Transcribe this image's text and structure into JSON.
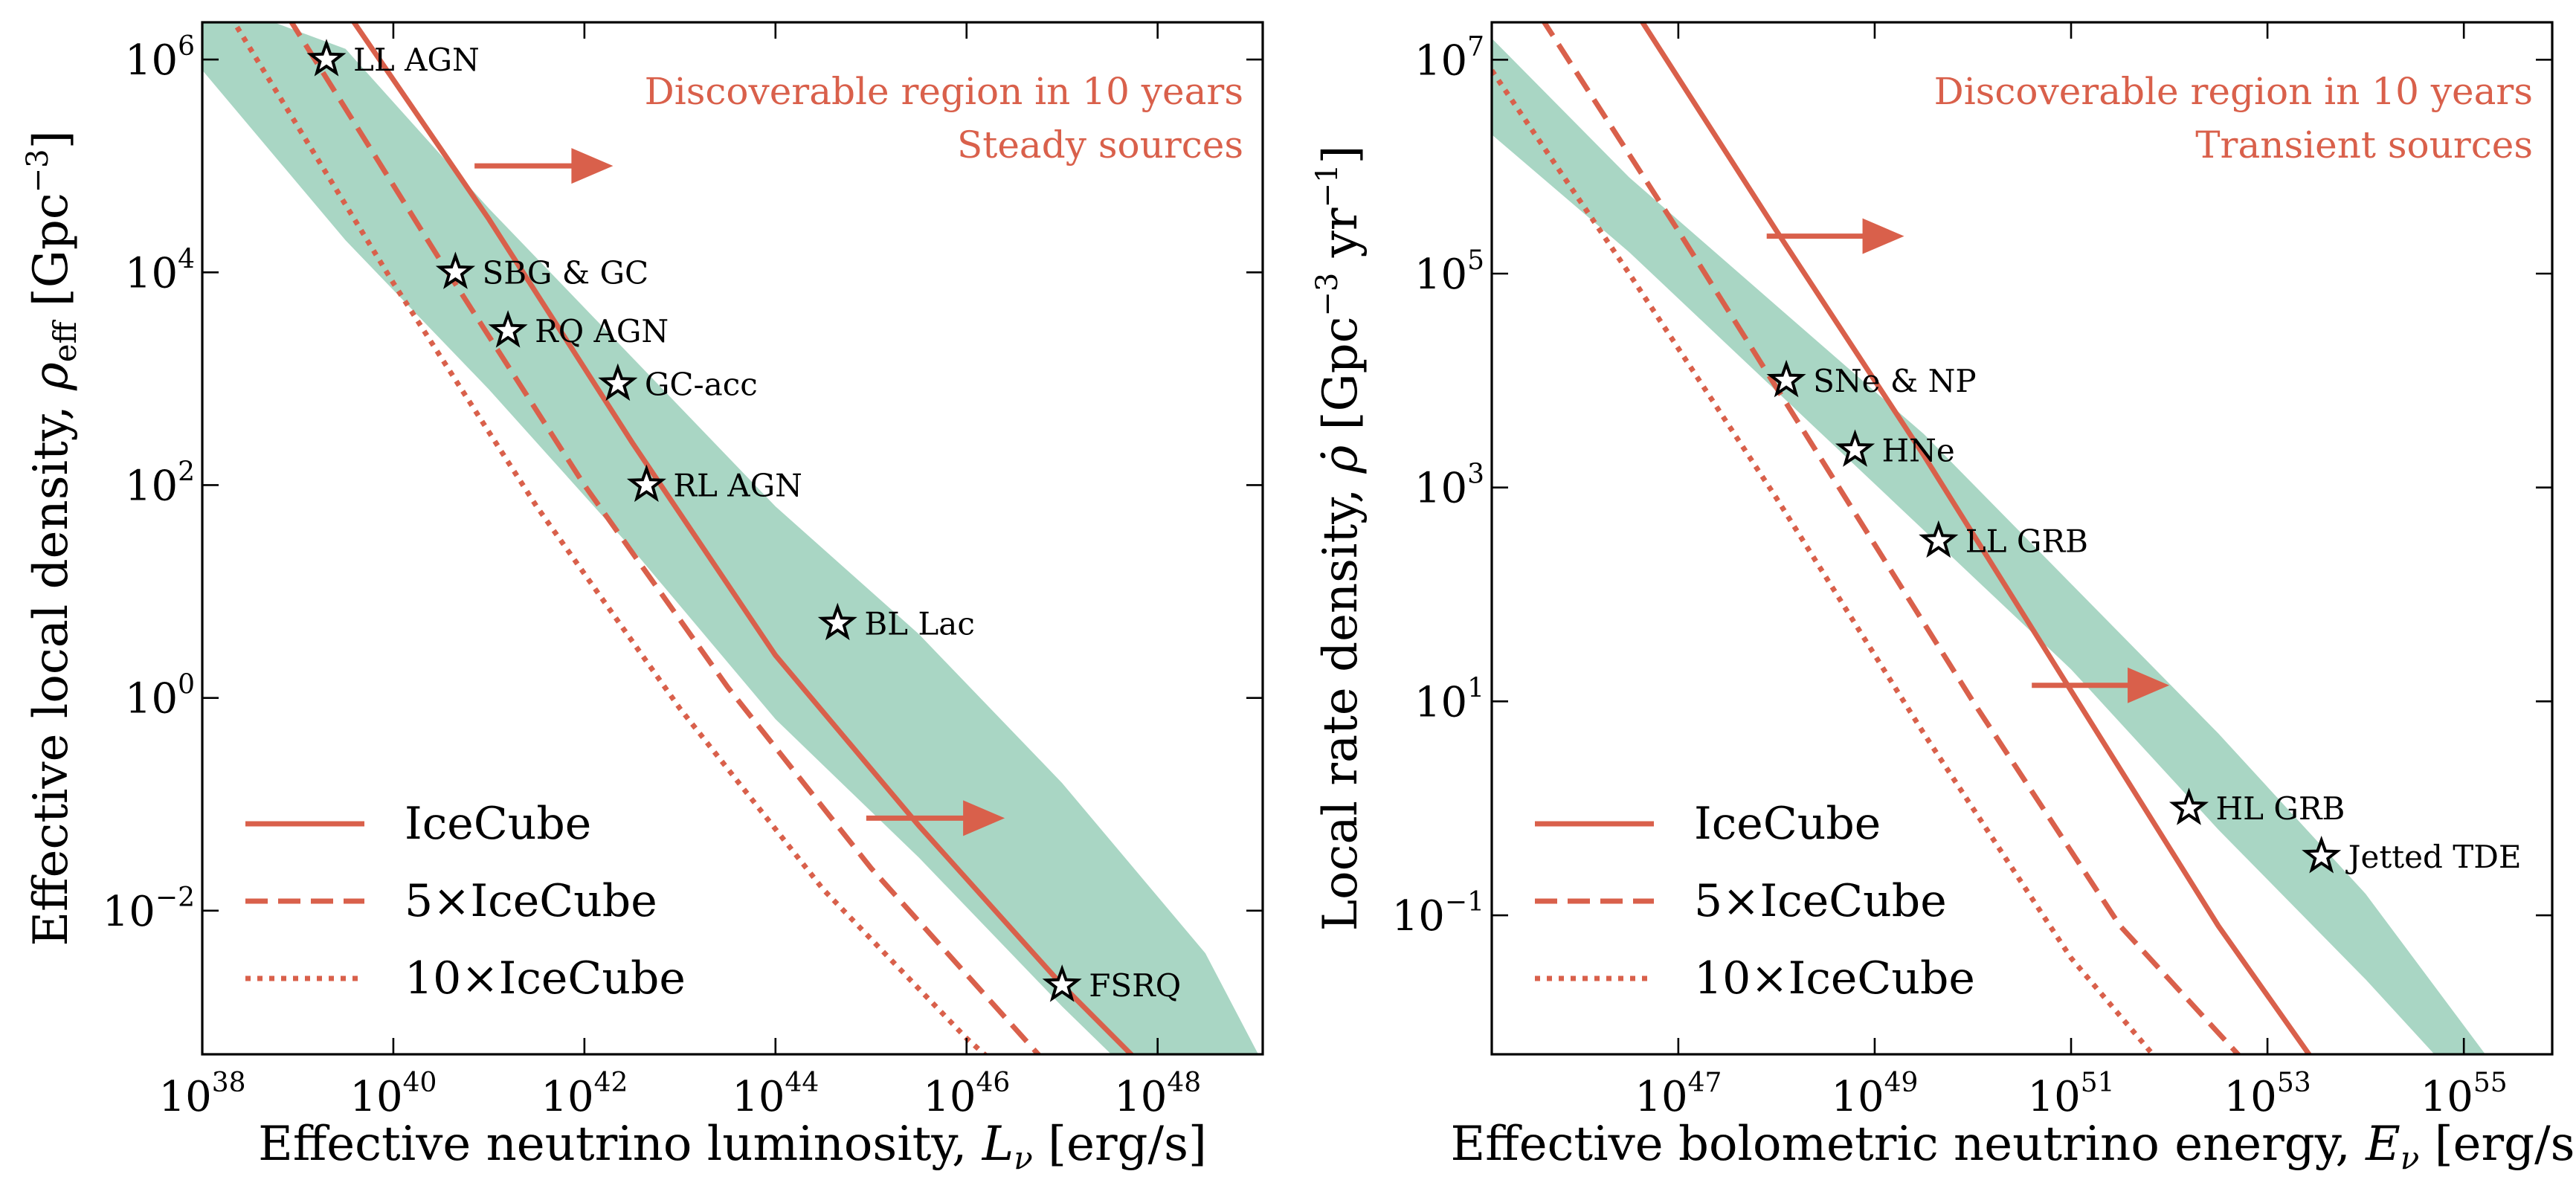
{
  "colors": {
    "curve": "#d9604b",
    "band": "#a9d6c4",
    "axis": "#000000",
    "annotation": "#d9604b"
  },
  "chart_data": [
    {
      "type": "line",
      "panel": "left",
      "xscale": "log",
      "yscale": "log",
      "xlabel_main": "Effective neutrino luminosity, ",
      "xlabel_sym": "L",
      "xlabel_sub": "ν",
      "xlabel_unit": " [erg/s]",
      "ylabel_main": "Effective local density, ",
      "ylabel_sym": "ρ",
      "ylabel_sub": "eff",
      "ylabel_unit_pre": " [Gpc",
      "ylabel_unit_exp": "−3",
      "ylabel_unit_post": "]",
      "xlim_log10": [
        38,
        49.1
      ],
      "ylim_log10": [
        -3.35,
        6.35
      ],
      "xticks": [
        {
          "exp": 38,
          "base": "10",
          "power": "38"
        },
        {
          "exp": 40,
          "base": "10",
          "power": "40"
        },
        {
          "exp": 42,
          "base": "10",
          "power": "42"
        },
        {
          "exp": 44,
          "base": "10",
          "power": "44"
        },
        {
          "exp": 46,
          "base": "10",
          "power": "46"
        },
        {
          "exp": 48,
          "base": "10",
          "power": "48"
        }
      ],
      "yticks": [
        {
          "exp": -2,
          "base": "10",
          "power": "−2"
        },
        {
          "exp": 0,
          "base": "10",
          "power": "0"
        },
        {
          "exp": 2,
          "base": "10",
          "power": "2"
        },
        {
          "exp": 4,
          "base": "10",
          "power": "4"
        },
        {
          "exp": 6,
          "base": "10",
          "power": "6"
        }
      ],
      "annotation_lines": [
        "Discoverable region in 10 years",
        "Steady sources"
      ],
      "series": [
        {
          "name": "IceCube",
          "style": "solid",
          "x_log10": [
            39.55,
            41.0,
            42.5,
            44.0,
            45.5,
            47.0,
            48.0
          ],
          "y_log10": [
            6.4,
            4.5,
            2.4,
            0.4,
            -1.2,
            -2.7,
            -3.6
          ]
        },
        {
          "name": "5×IceCube",
          "style": "dashed",
          "x_log10": [
            38.9,
            40.5,
            42.0,
            43.5,
            45.0,
            46.5,
            47.0
          ],
          "y_log10": [
            6.4,
            4.1,
            2.0,
            0.1,
            -1.6,
            -3.1,
            -3.6
          ]
        },
        {
          "name": "10×IceCube",
          "style": "dotted",
          "x_log10": [
            38.3,
            40.0,
            41.5,
            43.0,
            44.5,
            46.0,
            46.5
          ],
          "y_log10": [
            6.4,
            3.9,
            1.8,
            -0.1,
            -1.8,
            -3.2,
            -3.6
          ]
        }
      ],
      "band": {
        "upper": {
          "x_log10": [
            38.0,
            39.5,
            41.0,
            42.5,
            44.0,
            45.5,
            47.0,
            48.5,
            49.2
          ],
          "y_log10": [
            6.6,
            6.1,
            4.6,
            3.2,
            1.8,
            0.6,
            -0.8,
            -2.4,
            -3.6
          ]
        },
        "lower": {
          "x_log10": [
            38.0,
            39.5,
            41.0,
            42.5,
            44.0,
            45.5,
            47.0,
            47.8
          ],
          "y_log10": [
            5.9,
            4.3,
            2.9,
            1.4,
            -0.2,
            -1.5,
            -2.9,
            -3.6
          ]
        }
      },
      "sources": [
        {
          "name": "LL AGN",
          "x_log10": 39.3,
          "y_log10": 6.0
        },
        {
          "name": "SBG & GC",
          "x_log10": 40.65,
          "y_log10": 4.0
        },
        {
          "name": "RQ AGN",
          "x_log10": 41.2,
          "y_log10": 3.45
        },
        {
          "name": "GC-acc",
          "x_log10": 42.35,
          "y_log10": 2.95
        },
        {
          "name": "RL AGN",
          "x_log10": 42.65,
          "y_log10": 2.0
        },
        {
          "name": "BL Lac",
          "x_log10": 44.65,
          "y_log10": 0.7
        },
        {
          "name": "FSRQ",
          "x_log10": 47.0,
          "y_log10": -2.7
        }
      ],
      "arrows": [
        {
          "from_x_log10": 40.85,
          "to_x_log10": 42.3,
          "y_log10": 5.0
        },
        {
          "from_x_log10": 44.95,
          "to_x_log10": 46.4,
          "y_log10": -1.13
        }
      ],
      "legend": {
        "position": "lower-left",
        "entries": [
          "IceCube",
          "5×IceCube",
          "10×IceCube"
        ]
      }
    },
    {
      "type": "line",
      "panel": "right",
      "xscale": "log",
      "yscale": "log",
      "xlabel_main": "Effective bolometric neutrino energy, ",
      "xlabel_sym": "E",
      "xlabel_sub": "ν",
      "xlabel_unit": " [erg/s]",
      "ylabel_main": "Local rate density, ",
      "ylabel_sym": "ρ̇",
      "ylabel_unit_pre": " [Gpc",
      "ylabel_unit_exp": "−3",
      "ylabel_unit_mid": " yr",
      "ylabel_unit_exp2": "−1",
      "ylabel_unit_post": "]",
      "xlim_log10": [
        45.1,
        55.9
      ],
      "ylim_log10": [
        -2.3,
        7.35
      ],
      "xticks": [
        {
          "exp": 47,
          "base": "10",
          "power": "47"
        },
        {
          "exp": 49,
          "base": "10",
          "power": "49"
        },
        {
          "exp": 51,
          "base": "10",
          "power": "51"
        },
        {
          "exp": 53,
          "base": "10",
          "power": "53"
        },
        {
          "exp": 55,
          "base": "10",
          "power": "55"
        }
      ],
      "yticks": [
        {
          "exp": -1,
          "base": "10",
          "power": "−1"
        },
        {
          "exp": 1,
          "base": "10",
          "power": "1"
        },
        {
          "exp": 3,
          "base": "10",
          "power": "3"
        },
        {
          "exp": 5,
          "base": "10",
          "power": "5"
        },
        {
          "exp": 7,
          "base": "10",
          "power": "7"
        }
      ],
      "annotation_lines": [
        "Discoverable region in 10 years",
        "Transient sources"
      ],
      "series": [
        {
          "name": "IceCube",
          "style": "solid",
          "x_log10": [
            46.6,
            48.0,
            49.5,
            51.0,
            52.5,
            53.5
          ],
          "y_log10": [
            7.4,
            5.4,
            3.3,
            1.1,
            -1.1,
            -2.4
          ]
        },
        {
          "name": "5×IceCube",
          "style": "dashed",
          "x_log10": [
            45.6,
            47.0,
            48.5,
            50.0,
            51.5,
            52.8
          ],
          "y_log10": [
            7.4,
            5.4,
            3.2,
            1.0,
            -1.1,
            -2.4
          ]
        },
        {
          "name": "10×IceCube",
          "style": "dotted",
          "x_log10": [
            45.1,
            46.5,
            48.0,
            49.5,
            51.0,
            52.2
          ],
          "y_log10": [
            6.9,
            5.0,
            2.9,
            0.7,
            -1.4,
            -2.7
          ]
        }
      ],
      "band": {
        "upper": {
          "x_log10": [
            45.1,
            46.5,
            48.0,
            49.5,
            51.0,
            52.5,
            54.0,
            55.3
          ],
          "y_log10": [
            7.2,
            5.9,
            4.7,
            3.5,
            2.1,
            0.7,
            -0.8,
            -2.4
          ]
        },
        "lower": {
          "x_log10": [
            45.1,
            46.5,
            48.0,
            49.5,
            51.0,
            52.5,
            54.0,
            54.8
          ],
          "y_log10": [
            6.3,
            5.2,
            3.9,
            2.6,
            1.3,
            -0.2,
            -1.6,
            -2.4
          ]
        }
      },
      "sources": [
        {
          "name": "SNe & NP",
          "x_log10": 48.1,
          "y_log10": 4.0
        },
        {
          "name": "HNe",
          "x_log10": 48.8,
          "y_log10": 3.35
        },
        {
          "name": "LL GRB",
          "x_log10": 49.65,
          "y_log10": 2.5
        },
        {
          "name": "HL GRB",
          "x_log10": 52.2,
          "y_log10": 0.0
        },
        {
          "name": "Jetted TDE",
          "x_log10": 53.55,
          "y_log10": -0.45
        }
      ],
      "arrows": [
        {
          "from_x_log10": 47.9,
          "to_x_log10": 49.3,
          "y_log10": 5.35
        },
        {
          "from_x_log10": 50.6,
          "to_x_log10": 52.0,
          "y_log10": 1.15
        }
      ],
      "legend": {
        "position": "lower-left",
        "entries": [
          "IceCube",
          "5×IceCube",
          "10×IceCube"
        ]
      }
    }
  ]
}
